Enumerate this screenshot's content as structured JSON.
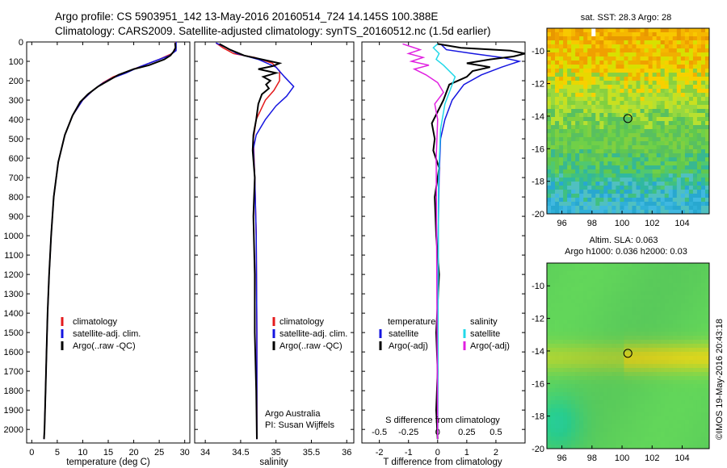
{
  "header": {
    "line1": "Argo profile: CS 5903951_142 13-May-2016 20160514_724 14.145S 100.388E",
    "line2": "Climatology: CARS2009. Satellite-adjusted climatology: synTS_20160512.nc (1.5d earlier)"
  },
  "colors": {
    "climatology": "#e41a1c",
    "satellite": "#1515e0",
    "argo": "#000000",
    "salinity_sat": "#22d8e8",
    "salinity_argo": "#e020e0"
  },
  "chart_data": [
    {
      "id": "temperature",
      "type": "line",
      "xlabel": "temperature (deg C)",
      "ylabel": "",
      "xlim": [
        -1,
        31
      ],
      "ylim": [
        2070,
        0
      ],
      "xticks": [
        0,
        5,
        10,
        15,
        20,
        25,
        30
      ],
      "yticks": [
        0,
        100,
        200,
        300,
        400,
        500,
        600,
        700,
        800,
        900,
        1000,
        1100,
        1200,
        1300,
        1400,
        1500,
        1600,
        1700,
        1800,
        1900,
        2000
      ],
      "legend": [
        "climatology",
        "satellite-adj. clim.",
        "Argo(..raw -QC)"
      ],
      "series": [
        {
          "name": "climatology",
          "color_key": "climatology",
          "x": [
            28.2,
            28.2,
            27.5,
            25,
            22,
            19,
            16,
            14,
            12,
            10,
            8,
            6.5,
            5.2,
            4.3,
            3.8,
            3.4,
            3.1,
            2.9,
            2.7,
            2.5,
            2.4
          ],
          "depth": [
            0,
            40,
            60,
            90,
            120,
            150,
            180,
            210,
            250,
            300,
            380,
            480,
            620,
            800,
            1000,
            1200,
            1400,
            1600,
            1800,
            2000,
            2050
          ]
        },
        {
          "name": "satellite-adj. clim.",
          "color_key": "satellite",
          "x": [
            28.3,
            28.3,
            27,
            24,
            21,
            18.5,
            15.5,
            13.5,
            11.8,
            10,
            8,
            6.5,
            5.2,
            4.3,
            3.8,
            3.4,
            3.1,
            2.9,
            2.7,
            2.5,
            2.4
          ],
          "depth": [
            0,
            45,
            70,
            100,
            130,
            160,
            190,
            220,
            255,
            300,
            380,
            480,
            620,
            800,
            1000,
            1200,
            1400,
            1600,
            1800,
            2000,
            2050
          ]
        },
        {
          "name": "Argo(..raw -QC)",
          "color_key": "argo",
          "x": [
            28.1,
            28.2,
            27.8,
            27.2,
            26,
            23,
            20,
            17,
            15,
            13,
            11,
            9.5,
            8,
            6.5,
            5.2,
            4.3,
            3.8,
            3.4,
            3.1,
            2.9,
            2.7,
            2.5,
            2.4
          ],
          "depth": [
            5,
            30,
            50,
            70,
            90,
            120,
            140,
            170,
            200,
            230,
            270,
            310,
            380,
            480,
            620,
            800,
            1000,
            1200,
            1400,
            1600,
            1800,
            2000,
            2050
          ]
        }
      ]
    },
    {
      "id": "salinity",
      "type": "line",
      "xlabel": "salinity",
      "xlim": [
        33.85,
        36.1
      ],
      "ylim": [
        2070,
        0
      ],
      "xticks": [
        34,
        34.5,
        35,
        35.5,
        36
      ],
      "legend": [
        "climatology",
        "satellite-adj. clim.",
        "Argo(..raw -QC)"
      ],
      "annotation": [
        "Argo Australia",
        "PI: Susan Wijffels"
      ],
      "series": [
        {
          "name": "climatology",
          "color_key": "climatology",
          "x": [
            34.15,
            34.25,
            34.4,
            34.7,
            34.95,
            35.05,
            35.05,
            34.97,
            34.85,
            34.72,
            34.68,
            34.7,
            34.72,
            34.73,
            34.73
          ],
          "depth": [
            5,
            30,
            60,
            80,
            110,
            150,
            200,
            250,
            300,
            400,
            500,
            700,
            1000,
            1500,
            2050
          ]
        },
        {
          "name": "satellite-adj. clim.",
          "color_key": "satellite",
          "x": [
            34.15,
            34.3,
            34.45,
            34.75,
            35.0,
            35.12,
            35.25,
            35.15,
            35.0,
            34.85,
            34.72,
            34.68,
            34.7,
            34.72,
            34.73,
            34.73
          ],
          "depth": [
            5,
            30,
            60,
            90,
            130,
            180,
            230,
            280,
            330,
            400,
            480,
            550,
            700,
            1000,
            1500,
            2050
          ]
        },
        {
          "name": "Argo(..raw -QC)",
          "color_key": "argo",
          "x": [
            34.2,
            34.35,
            34.55,
            34.8,
            35.05,
            34.95,
            34.75,
            35.0,
            34.82,
            34.92,
            34.86,
            34.9,
            34.8,
            34.75,
            34.72,
            34.68,
            34.67,
            34.7,
            34.68,
            34.7,
            34.7,
            34.72,
            34.73
          ],
          "depth": [
            10,
            40,
            70,
            90,
            110,
            125,
            140,
            160,
            180,
            200,
            220,
            240,
            270,
            320,
            400,
            480,
            560,
            700,
            900,
            1200,
            1500,
            1800,
            2050
          ]
        }
      ]
    },
    {
      "id": "difference",
      "type": "line",
      "xlabel_bottom": "T difference from climatology",
      "xlabel_top": "S difference from climatology",
      "xlim": [
        -2.6,
        3.0
      ],
      "ylim": [
        2070,
        0
      ],
      "xticks_T": [
        -2,
        -1,
        0,
        1,
        2
      ],
      "xticks_S_labels": [
        "-0.5",
        "-0.25",
        "0",
        "0.25",
        "0.5"
      ],
      "xticks_S_values": [
        -0.5,
        -0.25,
        0,
        0.25,
        0.5
      ],
      "legend_temperature": {
        "heading": "temperature",
        "items": [
          "satellite",
          "Argo(-adj)"
        ]
      },
      "legend_salinity": {
        "heading": "salinity",
        "items": [
          "satellite",
          "Argo(-adj)"
        ]
      },
      "series": [
        {
          "name": "temperature satellite",
          "color_key": "satellite",
          "x": [
            0.1,
            0.3,
            1.2,
            2.2,
            2.8,
            2.2,
            1.5,
            0.9,
            0.5,
            0.25,
            0.1,
            0.05,
            0.02,
            0
          ],
          "depth": [
            10,
            40,
            60,
            80,
            100,
            130,
            170,
            220,
            300,
            400,
            500,
            700,
            1000,
            2050
          ]
        },
        {
          "name": "temperature Argo(-adj)",
          "color_key": "argo",
          "x": [
            0.0,
            0.8,
            2.5,
            3.0,
            2.6,
            1.8,
            1.0,
            1.8,
            1.2,
            1.0,
            0.4,
            0.2,
            -0.2,
            -0.1,
            -0.15,
            0.05,
            -0.1,
            -0.05,
            0.05,
            -0.05,
            0.0,
            -0.05,
            0.0
          ],
          "depth": [
            10,
            30,
            45,
            60,
            75,
            90,
            110,
            130,
            150,
            180,
            220,
            300,
            420,
            500,
            560,
            650,
            800,
            1000,
            1200,
            1500,
            1700,
            1900,
            2050
          ]
        },
        {
          "name": "salinity satellite",
          "color_key": "salinity_sat",
          "x": [
            0.0,
            -0.15,
            0.05,
            -0.05,
            0.2,
            0.6,
            0.45,
            0.25,
            0.1,
            0.03,
            0.02,
            0
          ],
          "depth": [
            10,
            30,
            60,
            90,
            120,
            180,
            240,
            320,
            450,
            700,
            1200,
            2050
          ]
        },
        {
          "name": "salinity Argo(-adj)",
          "color_key": "salinity_argo",
          "x": [
            -1.2,
            -0.6,
            -1.0,
            -0.5,
            -0.9,
            -0.3,
            -0.8,
            -0.4,
            0.0,
            0.2,
            -0.1,
            0.0,
            -0.05,
            0.0
          ],
          "depth": [
            10,
            40,
            60,
            80,
            100,
            120,
            140,
            170,
            210,
            260,
            320,
            400,
            600,
            2050
          ]
        }
      ]
    },
    {
      "id": "sst_map",
      "type": "heatmap",
      "title": "sat. SST: 28.3 Argo: 28",
      "xticks": [
        96,
        98,
        100,
        102,
        104
      ],
      "yticks": [
        -10,
        -12,
        -14,
        -16,
        -18,
        -20
      ],
      "xlim": [
        95,
        105.8
      ],
      "ylim": [
        -20,
        -8.6
      ],
      "marker": {
        "lon": 100.388,
        "lat": -14.145
      }
    },
    {
      "id": "sla_map",
      "type": "heatmap",
      "title": "Altim. SLA: 0.063",
      "subtitle": "Argo h1000: 0.036 h2000: 0.03",
      "xticks": [
        96,
        98,
        100,
        102,
        104
      ],
      "yticks": [
        -10,
        -12,
        -14,
        -16,
        -18,
        -20
      ],
      "xlim": [
        95,
        105.8
      ],
      "ylim": [
        -20,
        -8.6
      ],
      "marker": {
        "lon": 100.388,
        "lat": -14.145
      }
    }
  ],
  "credit": "©IMOS 19-May-2016 20:43:18"
}
